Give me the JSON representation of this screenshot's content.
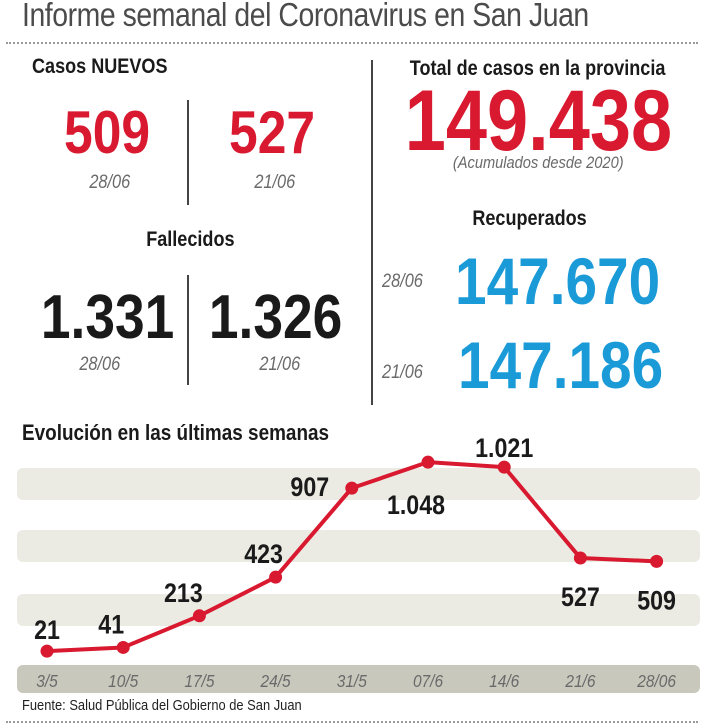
{
  "header": {
    "title": "Informe semanal del Coronavirus en San Juan"
  },
  "casos_nuevos": {
    "label": "Casos NUEVOS",
    "items": [
      {
        "value": "509",
        "date": "28/06"
      },
      {
        "value": "527",
        "date": "21/06"
      }
    ]
  },
  "total": {
    "label": "Total de casos en la provincia",
    "value": "149.438",
    "note": "(Acumulados desde 2020)"
  },
  "fallecidos": {
    "label": "Fallecidos",
    "items": [
      {
        "value": "1.331",
        "date": "28/06"
      },
      {
        "value": "1.326",
        "date": "21/06"
      }
    ]
  },
  "recuperados": {
    "label": "Recuperados",
    "items": [
      {
        "value": "147.670",
        "date": "28/06"
      },
      {
        "value": "147.186",
        "date": "21/06"
      }
    ]
  },
  "colors": {
    "red": "#d8192f",
    "blue": "#1b9ad8",
    "band": "#ebebe3",
    "axis_band": "#c9c8bd"
  },
  "chart_data": {
    "type": "line",
    "title": "Evolución en las últimas semanas",
    "categories": [
      "3/5",
      "10/5",
      "17/5",
      "24/5",
      "31/5",
      "07/6",
      "14/6",
      "21/6",
      "28/06"
    ],
    "values": [
      21,
      41,
      213,
      423,
      907,
      1048,
      1021,
      527,
      509
    ],
    "value_labels": [
      "21",
      "41",
      "213",
      "423",
      "907",
      "1.048",
      "1.021",
      "527",
      "509"
    ],
    "xlabel": "",
    "ylabel": "",
    "ylim": [
      0,
      1100
    ],
    "grid": false
  },
  "footer": {
    "source": "Fuente: Salud Pública del Gobierno de San Juan"
  }
}
